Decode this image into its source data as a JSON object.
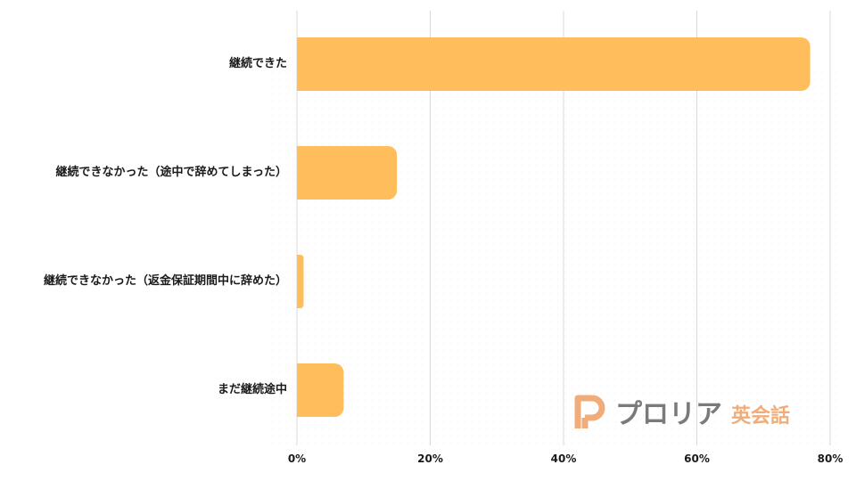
{
  "chart_data": {
    "type": "bar",
    "orientation": "horizontal",
    "categories": [
      "継続できた",
      "継続できなかった（途中で辞めてしまった）",
      "継続できなかった（返金保証期間中に辞めた）",
      "まだ継続途中"
    ],
    "values": [
      77,
      15,
      1,
      7
    ],
    "xlim": [
      0,
      80
    ],
    "xticks": [
      "0%",
      "20%",
      "40%",
      "60%",
      "80%"
    ],
    "grid": true,
    "bar_color": "#ffbd5c"
  },
  "watermark": {
    "name": "プロリア",
    "sub": "英会話",
    "logo_icon": "p-letter-logo-icon"
  }
}
